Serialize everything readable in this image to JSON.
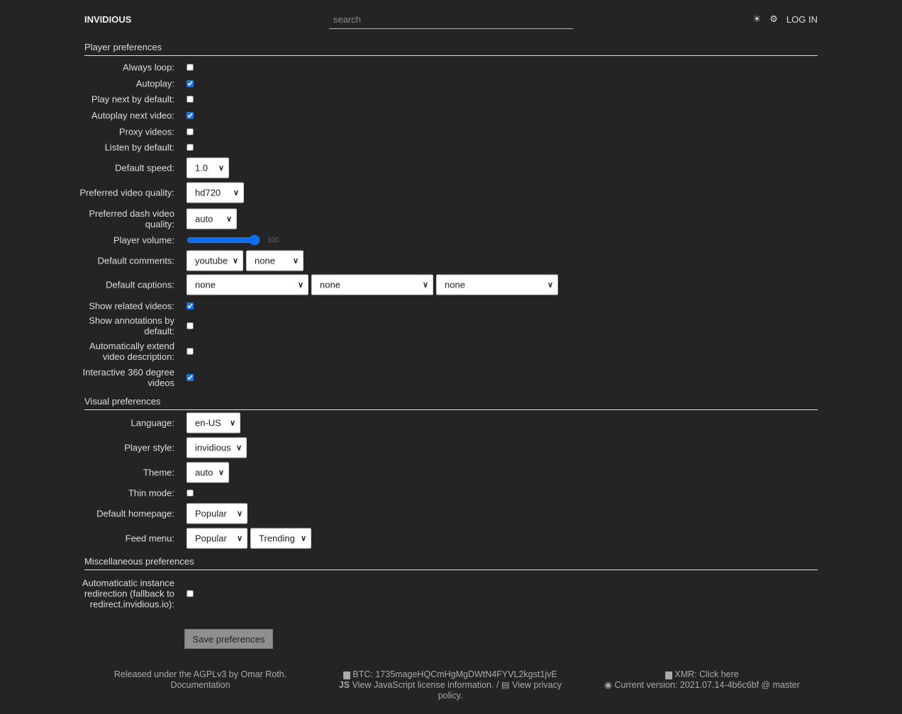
{
  "header": {
    "brand": "INVIDIOUS",
    "search_placeholder": "search",
    "theme_icon": "sun-icon",
    "settings_icon": "gear-icon",
    "login": "LOG IN"
  },
  "sections": [
    {
      "title": "Player preferences",
      "rows": [
        {
          "label": "Always loop:",
          "type": "checkbox",
          "checked": false
        },
        {
          "label": "Autoplay:",
          "type": "checkbox",
          "checked": true
        },
        {
          "label": "Play next by default:",
          "type": "checkbox",
          "checked": false
        },
        {
          "label": "Autoplay next video:",
          "type": "checkbox",
          "checked": true
        },
        {
          "label": "Proxy videos:",
          "type": "checkbox",
          "checked": false
        },
        {
          "label": "Listen by default:",
          "type": "checkbox",
          "checked": false
        },
        {
          "label": "Default speed:",
          "type": "select",
          "values": [
            "1.0"
          ]
        },
        {
          "label": "Preferred video quality:",
          "type": "select",
          "values": [
            "hd720"
          ]
        },
        {
          "label": "Preferred dash video quality:",
          "type": "select",
          "values": [
            "auto"
          ]
        },
        {
          "label": "Player volume:",
          "type": "range",
          "value": 100
        },
        {
          "label": "Default comments:",
          "type": "select",
          "values": [
            "youtube",
            "none"
          ]
        },
        {
          "label": "Default captions:",
          "type": "select",
          "values": [
            "none",
            "none",
            "none"
          ]
        },
        {
          "label": "Show related videos:",
          "type": "checkbox",
          "checked": true
        },
        {
          "label": "Show annotations by default:",
          "type": "checkbox",
          "checked": false
        },
        {
          "label": "Automatically extend video description:",
          "type": "checkbox",
          "checked": false
        },
        {
          "label": "Interactive 360 degree videos",
          "type": "checkbox",
          "checked": true
        }
      ]
    },
    {
      "title": "Visual preferences",
      "rows": [
        {
          "label": "Language:",
          "type": "select",
          "values": [
            "en-US"
          ]
        },
        {
          "label": "Player style:",
          "type": "select",
          "values": [
            "invidious"
          ]
        },
        {
          "label": "Theme:",
          "type": "select",
          "values": [
            "auto"
          ]
        },
        {
          "label": "Thin mode:",
          "type": "checkbox",
          "checked": false
        },
        {
          "label": "Default homepage:",
          "type": "select",
          "values": [
            "Popular"
          ]
        },
        {
          "label": "Feed menu:",
          "type": "select",
          "values": [
            "Popular",
            "Trending"
          ]
        }
      ]
    },
    {
      "title": "Miscellaneous preferences",
      "rows": [
        {
          "label": "Automaticatic instance redirection (fallback to redirect.invidious.io):",
          "type": "checkbox",
          "checked": false
        }
      ]
    }
  ],
  "save_label": "Save preferences",
  "footer": {
    "left": [
      "Released under the AGPLv3 by Omar Roth.",
      "Documentation"
    ],
    "btc": "BTC: 1735mageHQCmHgMgDWtN4FYVL2kgst1jvE",
    "js_license": "View JavaScript license information.",
    "privacy": "View privacy policy.",
    "xmr": "XMR: Click here",
    "version": "Current version: 2021.07.14-4b6c6bf @ master"
  }
}
